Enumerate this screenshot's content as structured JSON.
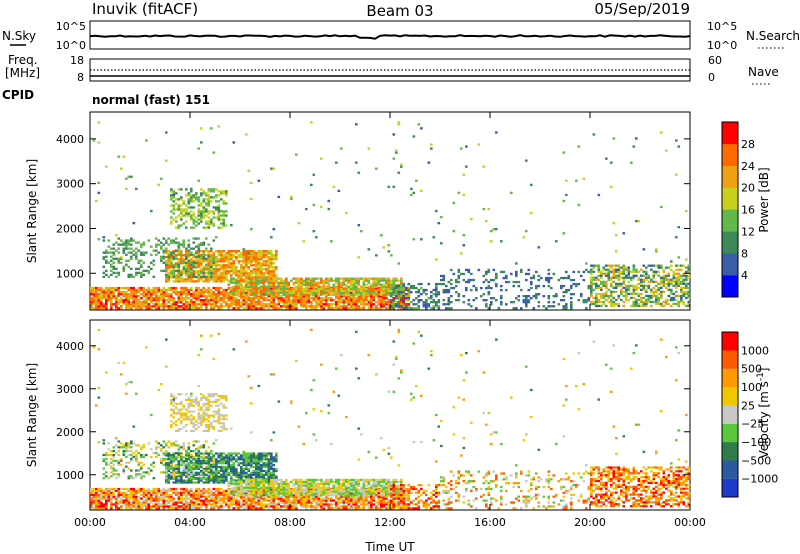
{
  "header": {
    "station": "Inuvik (fitACF)",
    "beam": "Beam 03",
    "date": "05/Sep/2019"
  },
  "noise_panel": {
    "left_label": "N.Sky",
    "right_label": "N.Search",
    "ticks": [
      "10^5",
      "10^0"
    ]
  },
  "freq_panel": {
    "left_label_1": "Freq.",
    "left_label_2": "[MHz]",
    "left_ticks": [
      "18",
      "8"
    ],
    "right_label": "Nave",
    "right_ticks": [
      "60",
      "0"
    ]
  },
  "cpid_panel": {
    "label": "CPID",
    "text": "normal (fast) 151"
  },
  "chart_data": [
    {
      "type": "heatmap",
      "title": "",
      "ylabel": "Slant Range [km]",
      "xlabel": "",
      "ylim": [
        180,
        4600
      ],
      "yticks": [
        1000,
        2000,
        3000,
        4000
      ],
      "xlim_hours": [
        0,
        24
      ],
      "xtick_labels": [
        "00:00",
        "04:00",
        "08:00",
        "12:00",
        "16:00",
        "20:00",
        "00:00"
      ],
      "colorbar": {
        "label": "Power [dB]",
        "range": [
          0,
          32
        ],
        "ticks": [
          4,
          8,
          12,
          16,
          20,
          24,
          28
        ],
        "colors": [
          "#0000ff",
          "#3a5da8",
          "#3c8a5c",
          "#64b84a",
          "#c8d21e",
          "#f0a014",
          "#ff6a00",
          "#ff0000"
        ]
      }
    },
    {
      "type": "heatmap",
      "title": "",
      "ylabel": "Slant Range [km]",
      "xlabel": "Time UT",
      "ylim": [
        180,
        4600
      ],
      "yticks": [
        1000,
        2000,
        3000,
        4000
      ],
      "xlim_hours": [
        0,
        24
      ],
      "xtick_labels": [
        "00:00",
        "04:00",
        "08:00",
        "12:00",
        "16:00",
        "20:00",
        "00:00"
      ],
      "colorbar": {
        "label": "Velocity [m s",
        "label_exp": "-1",
        "label_close": "]",
        "ticks": [
          "1000",
          "500",
          "100",
          "25",
          "−25",
          "−100",
          "−500",
          "−1000"
        ],
        "colors": [
          "#1e3cc8",
          "#2c5aa0",
          "#2e7d4a",
          "#5ac83c",
          "#c8c8c8",
          "#f0c800",
          "#ff9a00",
          "#ff5a00",
          "#ff0000"
        ]
      }
    }
  ]
}
